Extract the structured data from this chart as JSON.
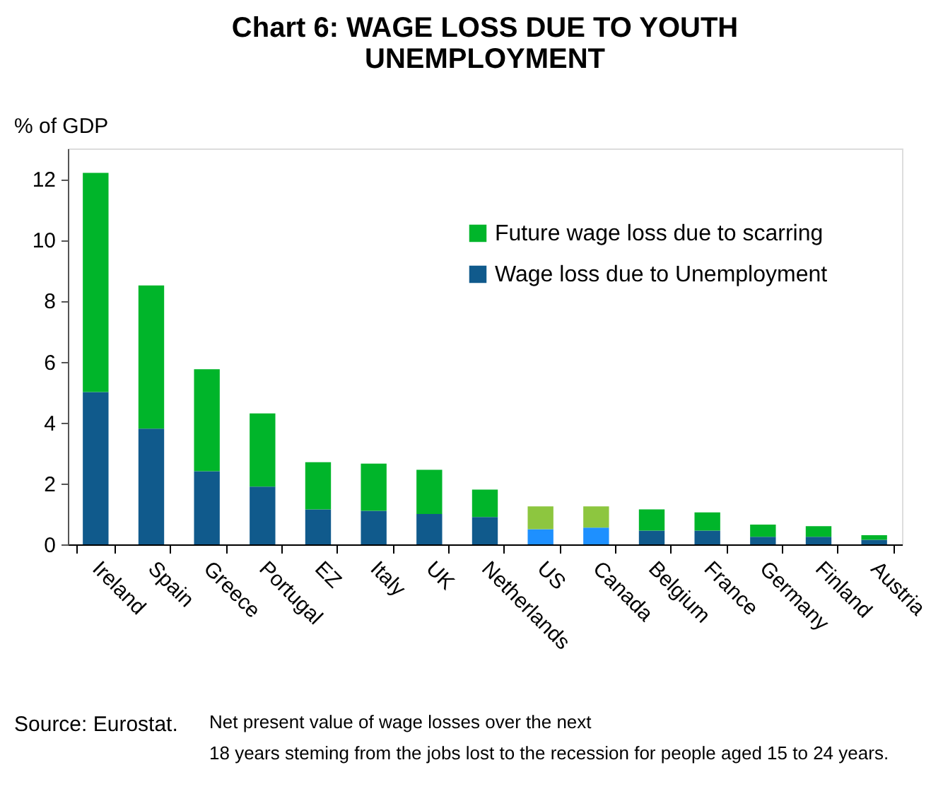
{
  "chart_data": {
    "type": "bar",
    "title": "Chart 6:  WAGE LOSS DUE TO YOUTH\nUNEMPLOYMENT",
    "ylabel": "% of GDP",
    "categories": [
      "Ireland",
      "Spain",
      "Greece",
      "Portugal",
      "EZ",
      "Italy",
      "UK",
      "Netherlands",
      "US",
      "Canada",
      "Belgium",
      "France",
      "Germany",
      "Finland",
      "Austria"
    ],
    "stacked": true,
    "series": [
      {
        "name": "Wage loss due to Unemployment",
        "color": "#105a8c",
        "colors": [
          "#105a8c",
          "#105a8c",
          "#105a8c",
          "#105a8c",
          "#105a8c",
          "#105a8c",
          "#105a8c",
          "#105a8c",
          "#1e90ff",
          "#1e90ff",
          "#105a8c",
          "#105a8c",
          "#105a8c",
          "#105a8c",
          "#105a8c"
        ],
        "values": [
          5.0,
          3.8,
          2.4,
          1.9,
          1.15,
          1.1,
          1.0,
          0.9,
          0.5,
          0.55,
          0.45,
          0.45,
          0.25,
          0.25,
          0.15
        ]
      },
      {
        "name": "Future wage loss due to scarring",
        "color": "#00b52a",
        "colors": [
          "#00b52a",
          "#00b52a",
          "#00b52a",
          "#00b52a",
          "#00b52a",
          "#00b52a",
          "#00b52a",
          "#00b52a",
          "#8dc63f",
          "#8dc63f",
          "#00b52a",
          "#00b52a",
          "#00b52a",
          "#00b52a",
          "#00b52a"
        ],
        "values": [
          7.2,
          4.7,
          3.35,
          2.4,
          1.55,
          1.55,
          1.45,
          0.9,
          0.75,
          0.7,
          0.7,
          0.6,
          0.4,
          0.35,
          0.15
        ]
      }
    ],
    "ylim": [
      0,
      13
    ],
    "yticks": [
      0,
      2,
      4,
      6,
      8,
      10,
      12
    ],
    "grid": false,
    "legend": "top right",
    "annotations": [
      "Source: Eurostat.",
      "Net present value of wage losses over the next\n18 years steming from the jobs lost to the recession for people aged 15 to 24 years."
    ]
  }
}
